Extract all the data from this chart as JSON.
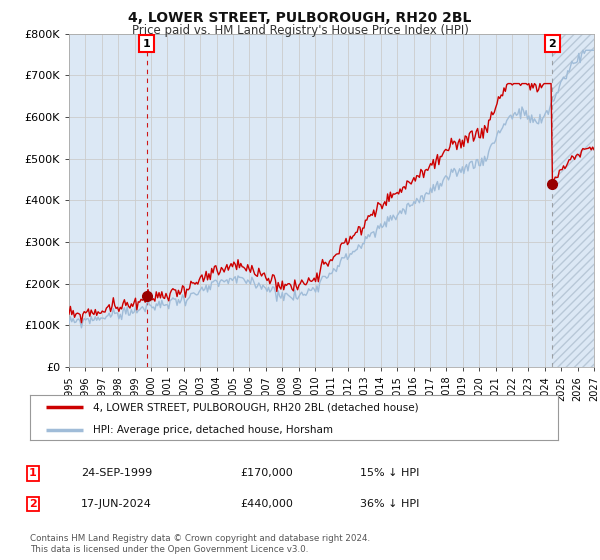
{
  "title": "4, LOWER STREET, PULBOROUGH, RH20 2BL",
  "subtitle": "Price paid vs. HM Land Registry's House Price Index (HPI)",
  "legend_line1": "4, LOWER STREET, PULBOROUGH, RH20 2BL (detached house)",
  "legend_line2": "HPI: Average price, detached house, Horsham",
  "ann1_label": "1",
  "ann1_date": "24-SEP-1999",
  "ann1_price": "£170,000",
  "ann1_hpi": "15% ↓ HPI",
  "ann2_label": "2",
  "ann2_date": "17-JUN-2024",
  "ann2_price": "£440,000",
  "ann2_hpi": "36% ↓ HPI",
  "footer": "Contains HM Land Registry data © Crown copyright and database right 2024.\nThis data is licensed under the Open Government Licence v3.0.",
  "hpi_color": "#a0bcd8",
  "price_color": "#cc0000",
  "bg_fill_color": "#dce8f5",
  "hatch_color": "#b8c8d8",
  "bg_color": "#ffffff",
  "grid_color": "#cccccc",
  "sale1_year": 1999.73,
  "sale1_price": 170000,
  "sale2_year": 2024.46,
  "sale2_price": 440000,
  "ylim": [
    0,
    800000
  ],
  "yticks": [
    0,
    100000,
    200000,
    300000,
    400000,
    500000,
    600000,
    700000,
    800000
  ],
  "xmin": 1995,
  "xmax": 2027,
  "xticks": [
    1995,
    1996,
    1997,
    1998,
    1999,
    2000,
    2001,
    2002,
    2003,
    2004,
    2005,
    2006,
    2007,
    2008,
    2009,
    2010,
    2011,
    2012,
    2013,
    2014,
    2015,
    2016,
    2017,
    2018,
    2019,
    2020,
    2021,
    2022,
    2023,
    2024,
    2025,
    2026,
    2027
  ]
}
